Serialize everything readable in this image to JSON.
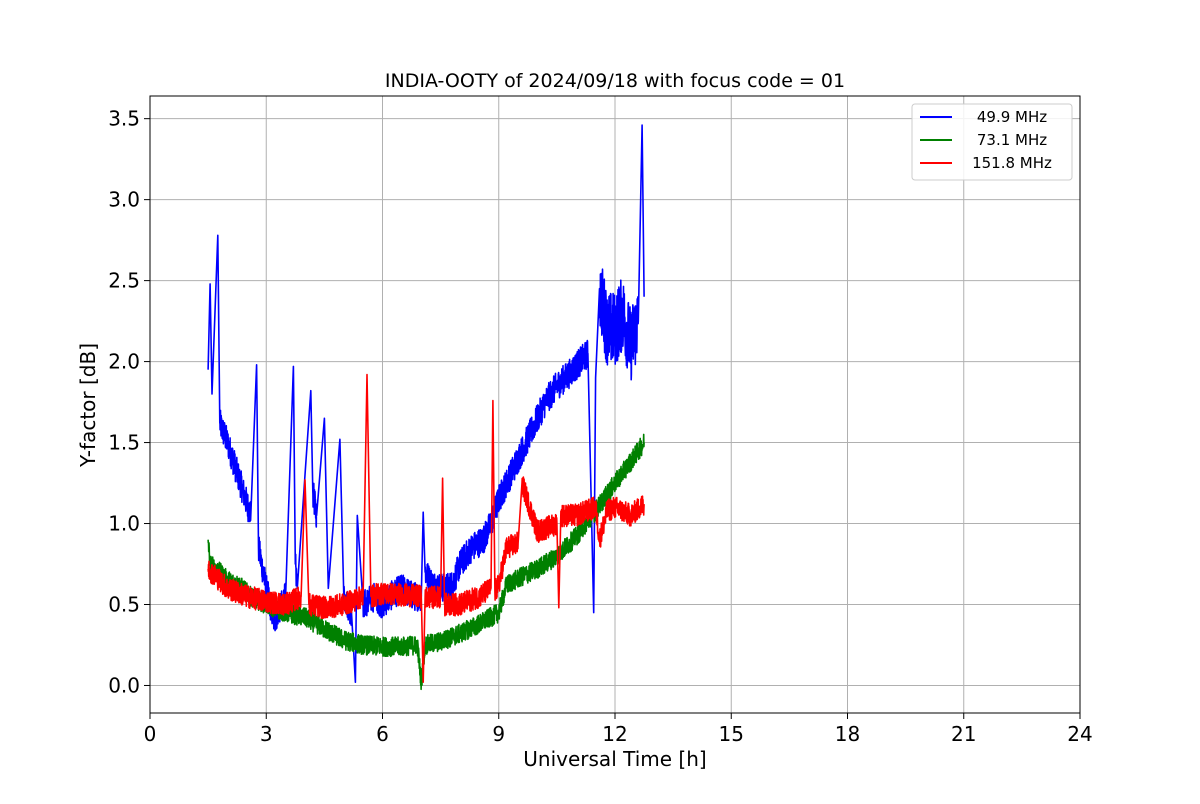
{
  "chart_data": {
    "type": "line",
    "title": "INDIA-OOTY of 2024/09/18 with focus code = 01",
    "xlabel": "Universal Time [h]",
    "ylabel": "Y-factor [dB]",
    "xlim": [
      0,
      24
    ],
    "ylim": [
      -0.17,
      3.64
    ],
    "xticks": [
      0,
      3,
      6,
      9,
      12,
      15,
      18,
      21,
      24
    ],
    "xtick_labels": [
      "0",
      "3",
      "6",
      "9",
      "12",
      "15",
      "18",
      "21",
      "24"
    ],
    "yticks": [
      0.0,
      0.5,
      1.0,
      1.5,
      2.0,
      2.5,
      3.0,
      3.5
    ],
    "ytick_labels": [
      "0.0",
      "0.5",
      "1.0",
      "1.5",
      "2.0",
      "2.5",
      "3.0",
      "3.5"
    ],
    "grid": true,
    "legend_position": "top-right",
    "series": [
      {
        "name": "49.9 MHz",
        "color": "#0000ff",
        "x": [
          1.5,
          1.55,
          1.6,
          1.75,
          1.8,
          2.0,
          2.2,
          2.4,
          2.6,
          2.75,
          2.8,
          3.0,
          3.2,
          3.5,
          3.7,
          3.75,
          3.8,
          4.0,
          4.15,
          4.2,
          4.3,
          4.5,
          4.6,
          4.9,
          5.0,
          5.2,
          5.3,
          5.35,
          5.5,
          5.8,
          6.0,
          6.2,
          6.5,
          6.8,
          7.0,
          7.05,
          7.1,
          7.3,
          7.6,
          7.8,
          8.0,
          8.3,
          8.6,
          8.8,
          9.0,
          9.3,
          9.6,
          9.9,
          10.2,
          10.5,
          10.8,
          11.1,
          11.3,
          11.45,
          11.5,
          11.6,
          11.8,
          12.0,
          12.2,
          12.4,
          12.6,
          12.7,
          12.75
        ],
        "y": [
          1.95,
          2.48,
          1.8,
          2.78,
          1.62,
          1.5,
          1.35,
          1.2,
          1.05,
          1.98,
          0.85,
          0.6,
          0.4,
          0.55,
          1.97,
          0.75,
          0.6,
          1.3,
          1.82,
          1.2,
          1.05,
          1.65,
          0.6,
          1.52,
          0.55,
          0.45,
          0.02,
          1.05,
          0.5,
          0.55,
          0.5,
          0.55,
          0.6,
          0.55,
          0.55,
          1.07,
          0.7,
          0.62,
          0.6,
          0.62,
          0.75,
          0.85,
          0.9,
          1.0,
          1.15,
          1.3,
          1.45,
          1.6,
          1.75,
          1.85,
          1.92,
          2.0,
          2.05,
          0.45,
          1.9,
          2.45,
          2.2,
          2.2,
          2.3,
          2.1,
          2.25,
          3.46,
          2.4
        ]
      },
      {
        "name": "73.1 MHz",
        "color": "#008000",
        "x": [
          1.5,
          1.55,
          1.8,
          2.0,
          2.3,
          2.6,
          3.0,
          3.5,
          4.0,
          4.5,
          5.0,
          5.5,
          6.0,
          6.5,
          6.9,
          7.0,
          7.1,
          7.5,
          8.0,
          8.5,
          9.0,
          9.2,
          9.5,
          10.0,
          10.5,
          11.0,
          11.5,
          12.0,
          12.4,
          12.75
        ],
        "y": [
          0.9,
          0.75,
          0.7,
          0.65,
          0.62,
          0.55,
          0.5,
          0.45,
          0.42,
          0.35,
          0.28,
          0.25,
          0.24,
          0.24,
          0.25,
          0.02,
          0.25,
          0.27,
          0.32,
          0.38,
          0.45,
          0.62,
          0.66,
          0.72,
          0.8,
          0.92,
          1.08,
          1.25,
          1.38,
          1.5
        ]
      },
      {
        "name": "151.8 MHz",
        "color": "#ff0000",
        "x": [
          1.5,
          1.8,
          2.0,
          2.5,
          3.0,
          3.5,
          3.9,
          4.0,
          4.1,
          4.5,
          5.0,
          5.5,
          5.6,
          5.7,
          6.0,
          6.5,
          7.0,
          7.05,
          7.1,
          7.5,
          7.55,
          7.6,
          8.0,
          8.5,
          8.8,
          8.85,
          8.9,
          9.0,
          9.2,
          9.5,
          9.6,
          10.0,
          10.5,
          10.55,
          10.6,
          11.0,
          11.5,
          11.6,
          11.8,
          12.0,
          12.4,
          12.75
        ],
        "y": [
          0.72,
          0.65,
          0.6,
          0.55,
          0.52,
          0.5,
          0.55,
          1.27,
          0.5,
          0.48,
          0.5,
          0.55,
          1.92,
          0.55,
          0.57,
          0.56,
          0.55,
          0.02,
          0.54,
          0.55,
          1.28,
          0.5,
          0.5,
          0.55,
          0.6,
          1.76,
          0.58,
          0.62,
          0.85,
          0.88,
          1.25,
          0.95,
          1.0,
          0.48,
          1.05,
          1.05,
          1.1,
          0.9,
          1.08,
          1.1,
          1.05,
          1.12
        ]
      }
    ]
  }
}
